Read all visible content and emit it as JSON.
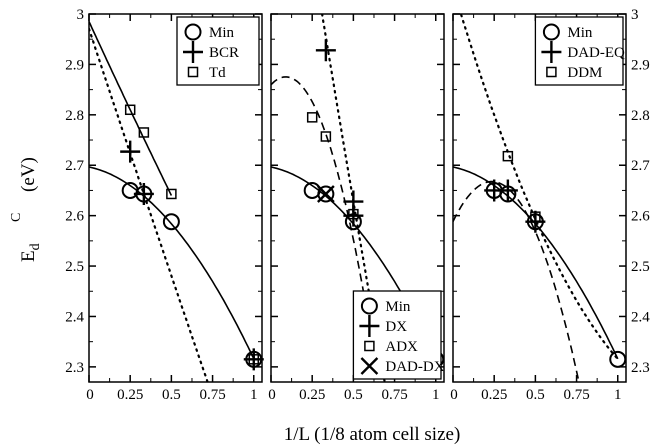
{
  "chart_data": {
    "type": "line",
    "xlabel": "1/L (1/8 atom cell size)",
    "ylabel": {
      "main": "E",
      "sub": "d",
      "sup": "C",
      "unit": "(eV)"
    },
    "xlim": [
      0,
      1.05
    ],
    "ylim": [
      2.27,
      3.0
    ],
    "x_ticks": [
      0,
      0.25,
      0.5,
      0.75,
      1
    ],
    "x_tick_labels": [
      "0",
      "0.25",
      "0.5",
      "0.75",
      "1"
    ],
    "y_ticks": [
      2.3,
      2.4,
      2.5,
      2.6,
      2.7,
      2.8,
      2.9,
      3.0
    ],
    "y_tick_labels": [
      "2.3",
      "2.4",
      "2.5",
      "2.6",
      "2.7",
      "2.8",
      "2.9",
      "3"
    ],
    "grid": false,
    "panels": [
      {
        "legend_position": "top-right",
        "series": [
          {
            "name": "Min",
            "marker": "circle",
            "points": [
              [
                0.25,
                2.65
              ],
              [
                0.333,
                2.643
              ],
              [
                0.5,
                2.588
              ],
              [
                1.0,
                2.315
              ]
            ]
          },
          {
            "name": "BCR",
            "marker": "plus",
            "points": [
              [
                0.25,
                2.727
              ],
              [
                0.333,
                2.643
              ],
              [
                1.0,
                2.315
              ]
            ]
          },
          {
            "name": "Td",
            "marker": "square",
            "points": [
              [
                0.25,
                2.81
              ],
              [
                0.333,
                2.765
              ],
              [
                0.5,
                2.643
              ],
              [
                1.0,
                2.315
              ]
            ]
          }
        ],
        "fits": [
          {
            "style": "solid",
            "x_from": 0,
            "x_to": 1.0,
            "points": [
              [
                0.0,
                2.7
              ],
              [
                0.25,
                2.65
              ],
              [
                0.333,
                2.64
              ],
              [
                0.5,
                2.59
              ],
              [
                1.0,
                2.315
              ]
            ]
          },
          {
            "style": "solid",
            "x_from": 0,
            "x_to": 0.5,
            "points": [
              [
                0.0,
                2.985
              ],
              [
                0.25,
                2.81
              ],
              [
                0.5,
                2.64
              ]
            ]
          },
          {
            "style": "dotted",
            "x_from": 0,
            "x_to": 0.72,
            "points": [
              [
                0.0,
                2.97
              ],
              [
                0.25,
                2.727
              ],
              [
                0.333,
                2.64
              ],
              [
                0.72,
                2.27
              ]
            ]
          }
        ]
      },
      {
        "legend_position": "bottom-right",
        "series": [
          {
            "name": "Min",
            "marker": "circle",
            "points": [
              [
                0.25,
                2.65
              ],
              [
                0.333,
                2.643
              ],
              [
                0.5,
                2.588
              ],
              [
                1.0,
                2.315
              ]
            ]
          },
          {
            "name": "DX",
            "marker": "plus",
            "points": [
              [
                0.333,
                2.928
              ],
              [
                0.5,
                2.628
              ],
              [
                0.5,
                2.6
              ]
            ]
          },
          {
            "name": "ADX",
            "marker": "square",
            "points": [
              [
                0.25,
                2.795
              ],
              [
                0.333,
                2.757
              ],
              [
                0.5,
                2.603
              ]
            ]
          },
          {
            "name": "DAD-DX",
            "marker": "x",
            "points": [
              [
                0.333,
                2.643
              ]
            ]
          }
        ],
        "fits": [
          {
            "style": "solid",
            "x_from": 0,
            "x_to": 1.0,
            "points": [
              [
                0.0,
                2.7
              ],
              [
                0.25,
                2.65
              ],
              [
                0.333,
                2.64
              ],
              [
                0.5,
                2.59
              ],
              [
                1.0,
                2.315
              ]
            ]
          },
          {
            "style": "dashed",
            "x_from": 0,
            "x_to": 0.64,
            "points": [
              [
                0.0,
                2.87
              ],
              [
                0.25,
                2.795
              ],
              [
                0.333,
                2.757
              ],
              [
                0.5,
                2.603
              ],
              [
                0.64,
                2.27
              ]
            ]
          },
          {
            "style": "dotted",
            "x_from": 0.31,
            "x_to": 0.69,
            "points": [
              [
                0.31,
                3.0
              ],
              [
                0.5,
                2.628
              ],
              [
                0.69,
                2.27
              ]
            ]
          }
        ]
      },
      {
        "legend_position": "top-right",
        "series": [
          {
            "name": "Min",
            "marker": "circle",
            "points": [
              [
                0.25,
                2.65
              ],
              [
                0.333,
                2.643
              ],
              [
                0.5,
                2.588
              ],
              [
                1.0,
                2.315
              ]
            ]
          },
          {
            "name": "DAD-EQ",
            "marker": "plus",
            "points": [
              [
                0.25,
                2.65
              ],
              [
                0.333,
                2.65
              ],
              [
                0.5,
                2.588
              ]
            ]
          },
          {
            "name": "DDM",
            "marker": "square",
            "points": [
              [
                0.333,
                2.718
              ],
              [
                0.5,
                2.598
              ]
            ]
          }
        ],
        "fits": [
          {
            "style": "solid",
            "x_from": 0,
            "x_to": 1.0,
            "points": [
              [
                0.0,
                2.7
              ],
              [
                0.25,
                2.65
              ],
              [
                0.333,
                2.64
              ],
              [
                0.5,
                2.59
              ],
              [
                1.0,
                2.315
              ]
            ]
          },
          {
            "style": "dashed",
            "x_from": 0,
            "x_to": 0.76,
            "points": [
              [
                0.0,
                2.595
              ],
              [
                0.25,
                2.65
              ],
              [
                0.333,
                2.65
              ],
              [
                0.5,
                2.59
              ],
              [
                0.76,
                2.27
              ]
            ]
          },
          {
            "style": "dotted",
            "x_from": 0.05,
            "x_to": 1.0,
            "points": [
              [
                0.05,
                3.0
              ],
              [
                0.333,
                2.72
              ],
              [
                0.5,
                2.598
              ],
              [
                1.0,
                2.315
              ]
            ]
          }
        ]
      }
    ]
  }
}
